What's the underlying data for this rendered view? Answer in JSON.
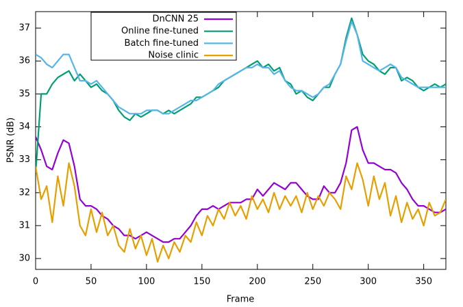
{
  "chart_data": {
    "type": "line",
    "x_label": "Frame",
    "y_label": "PSNR (dB)",
    "x": [
      0,
      5,
      10,
      15,
      20,
      25,
      30,
      35,
      40,
      45,
      50,
      55,
      60,
      65,
      70,
      75,
      80,
      85,
      90,
      95,
      100,
      105,
      110,
      115,
      120,
      125,
      130,
      135,
      140,
      145,
      150,
      155,
      160,
      165,
      170,
      175,
      180,
      185,
      190,
      195,
      200,
      205,
      210,
      215,
      220,
      225,
      230,
      235,
      240,
      245,
      250,
      255,
      260,
      265,
      270,
      275,
      280,
      285,
      290,
      295,
      300,
      305,
      310,
      315,
      320,
      325,
      330,
      335,
      340,
      345,
      350,
      355,
      360,
      365,
      370
    ],
    "series": [
      {
        "name": "DnCNN 25",
        "color": "#9400d3",
        "values": [
          33.7,
          33.3,
          32.8,
          32.7,
          33.2,
          33.6,
          33.5,
          32.8,
          31.8,
          31.6,
          31.6,
          31.5,
          31.3,
          31.2,
          31.0,
          30.9,
          30.7,
          30.7,
          30.6,
          30.7,
          30.8,
          30.7,
          30.6,
          30.5,
          30.5,
          30.6,
          30.6,
          30.8,
          31.0,
          31.3,
          31.5,
          31.5,
          31.6,
          31.5,
          31.6,
          31.7,
          31.7,
          31.7,
          31.8,
          31.8,
          32.1,
          31.9,
          32.1,
          32.3,
          32.2,
          32.1,
          32.3,
          32.3,
          32.1,
          31.9,
          31.8,
          31.8,
          32.2,
          32.0,
          32.0,
          32.3,
          32.9,
          33.9,
          34.0,
          33.3,
          32.9,
          32.9,
          32.8,
          32.7,
          32.7,
          32.6,
          32.3,
          32.1,
          31.8,
          31.6,
          31.6,
          31.5,
          31.4,
          31.4,
          31.5
        ]
      },
      {
        "name": "Online fine-tuned",
        "color": "#009e73",
        "values": [
          32.6,
          35.0,
          35.0,
          35.3,
          35.5,
          35.6,
          35.7,
          35.4,
          35.6,
          35.4,
          35.2,
          35.3,
          35.1,
          35.0,
          34.8,
          34.5,
          34.3,
          34.2,
          34.4,
          34.3,
          34.4,
          34.5,
          34.5,
          34.4,
          34.5,
          34.4,
          34.5,
          34.6,
          34.7,
          34.9,
          34.9,
          35.0,
          35.1,
          35.2,
          35.4,
          35.5,
          35.6,
          35.7,
          35.8,
          35.9,
          36.0,
          35.8,
          35.9,
          35.7,
          35.8,
          35.4,
          35.3,
          35.0,
          35.1,
          34.9,
          34.8,
          35.0,
          35.2,
          35.2,
          35.6,
          35.9,
          36.7,
          37.3,
          36.8,
          36.2,
          36.0,
          35.9,
          35.7,
          35.6,
          35.8,
          35.8,
          35.4,
          35.5,
          35.4,
          35.2,
          35.1,
          35.2,
          35.3,
          35.2,
          35.3
        ]
      },
      {
        "name": "Batch fine-tuned",
        "color": "#56b4e9",
        "values": [
          36.2,
          36.1,
          35.9,
          35.8,
          36.0,
          36.2,
          36.2,
          35.8,
          35.4,
          35.4,
          35.3,
          35.4,
          35.2,
          35.0,
          34.8,
          34.6,
          34.5,
          34.4,
          34.4,
          34.4,
          34.5,
          34.5,
          34.5,
          34.4,
          34.4,
          34.5,
          34.6,
          34.7,
          34.8,
          34.8,
          34.9,
          35.0,
          35.1,
          35.3,
          35.4,
          35.5,
          35.6,
          35.7,
          35.8,
          35.8,
          35.9,
          35.8,
          35.8,
          35.6,
          35.7,
          35.4,
          35.2,
          35.1,
          35.1,
          35.0,
          34.9,
          35.0,
          35.2,
          35.3,
          35.6,
          35.9,
          36.6,
          37.2,
          36.8,
          36.0,
          35.9,
          35.8,
          35.7,
          35.8,
          35.9,
          35.8,
          35.5,
          35.4,
          35.3,
          35.2,
          35.2,
          35.2,
          35.2,
          35.2,
          35.2
        ]
      },
      {
        "name": "Noise clinic",
        "color": "#e69f00",
        "values": [
          32.8,
          31.8,
          32.2,
          31.1,
          32.5,
          31.6,
          32.9,
          32.2,
          31.0,
          30.7,
          31.5,
          30.8,
          31.4,
          30.7,
          31.0,
          30.4,
          30.2,
          30.9,
          30.3,
          30.7,
          30.1,
          30.6,
          29.9,
          30.4,
          30.0,
          30.5,
          30.2,
          30.7,
          30.5,
          31.1,
          30.7,
          31.3,
          31.0,
          31.5,
          31.2,
          31.7,
          31.3,
          31.6,
          31.2,
          31.9,
          31.5,
          31.8,
          31.4,
          32.0,
          31.5,
          31.9,
          31.6,
          31.9,
          31.4,
          32.0,
          31.5,
          31.9,
          31.6,
          32.0,
          31.8,
          31.5,
          32.5,
          32.1,
          32.9,
          32.4,
          31.6,
          32.5,
          31.8,
          32.3,
          31.3,
          31.9,
          31.1,
          31.7,
          31.2,
          31.5,
          31.0,
          31.7,
          31.3,
          31.4,
          31.8
        ]
      }
    ],
    "xlim": [
      0,
      370
    ],
    "xticks": [
      0,
      50,
      100,
      150,
      200,
      250,
      300,
      350
    ],
    "ylim": [
      29.67,
      37.5
    ],
    "yticks": [
      30,
      31,
      32,
      33,
      34,
      35,
      36,
      37
    ],
    "grid": false,
    "legend": "top-left"
  }
}
